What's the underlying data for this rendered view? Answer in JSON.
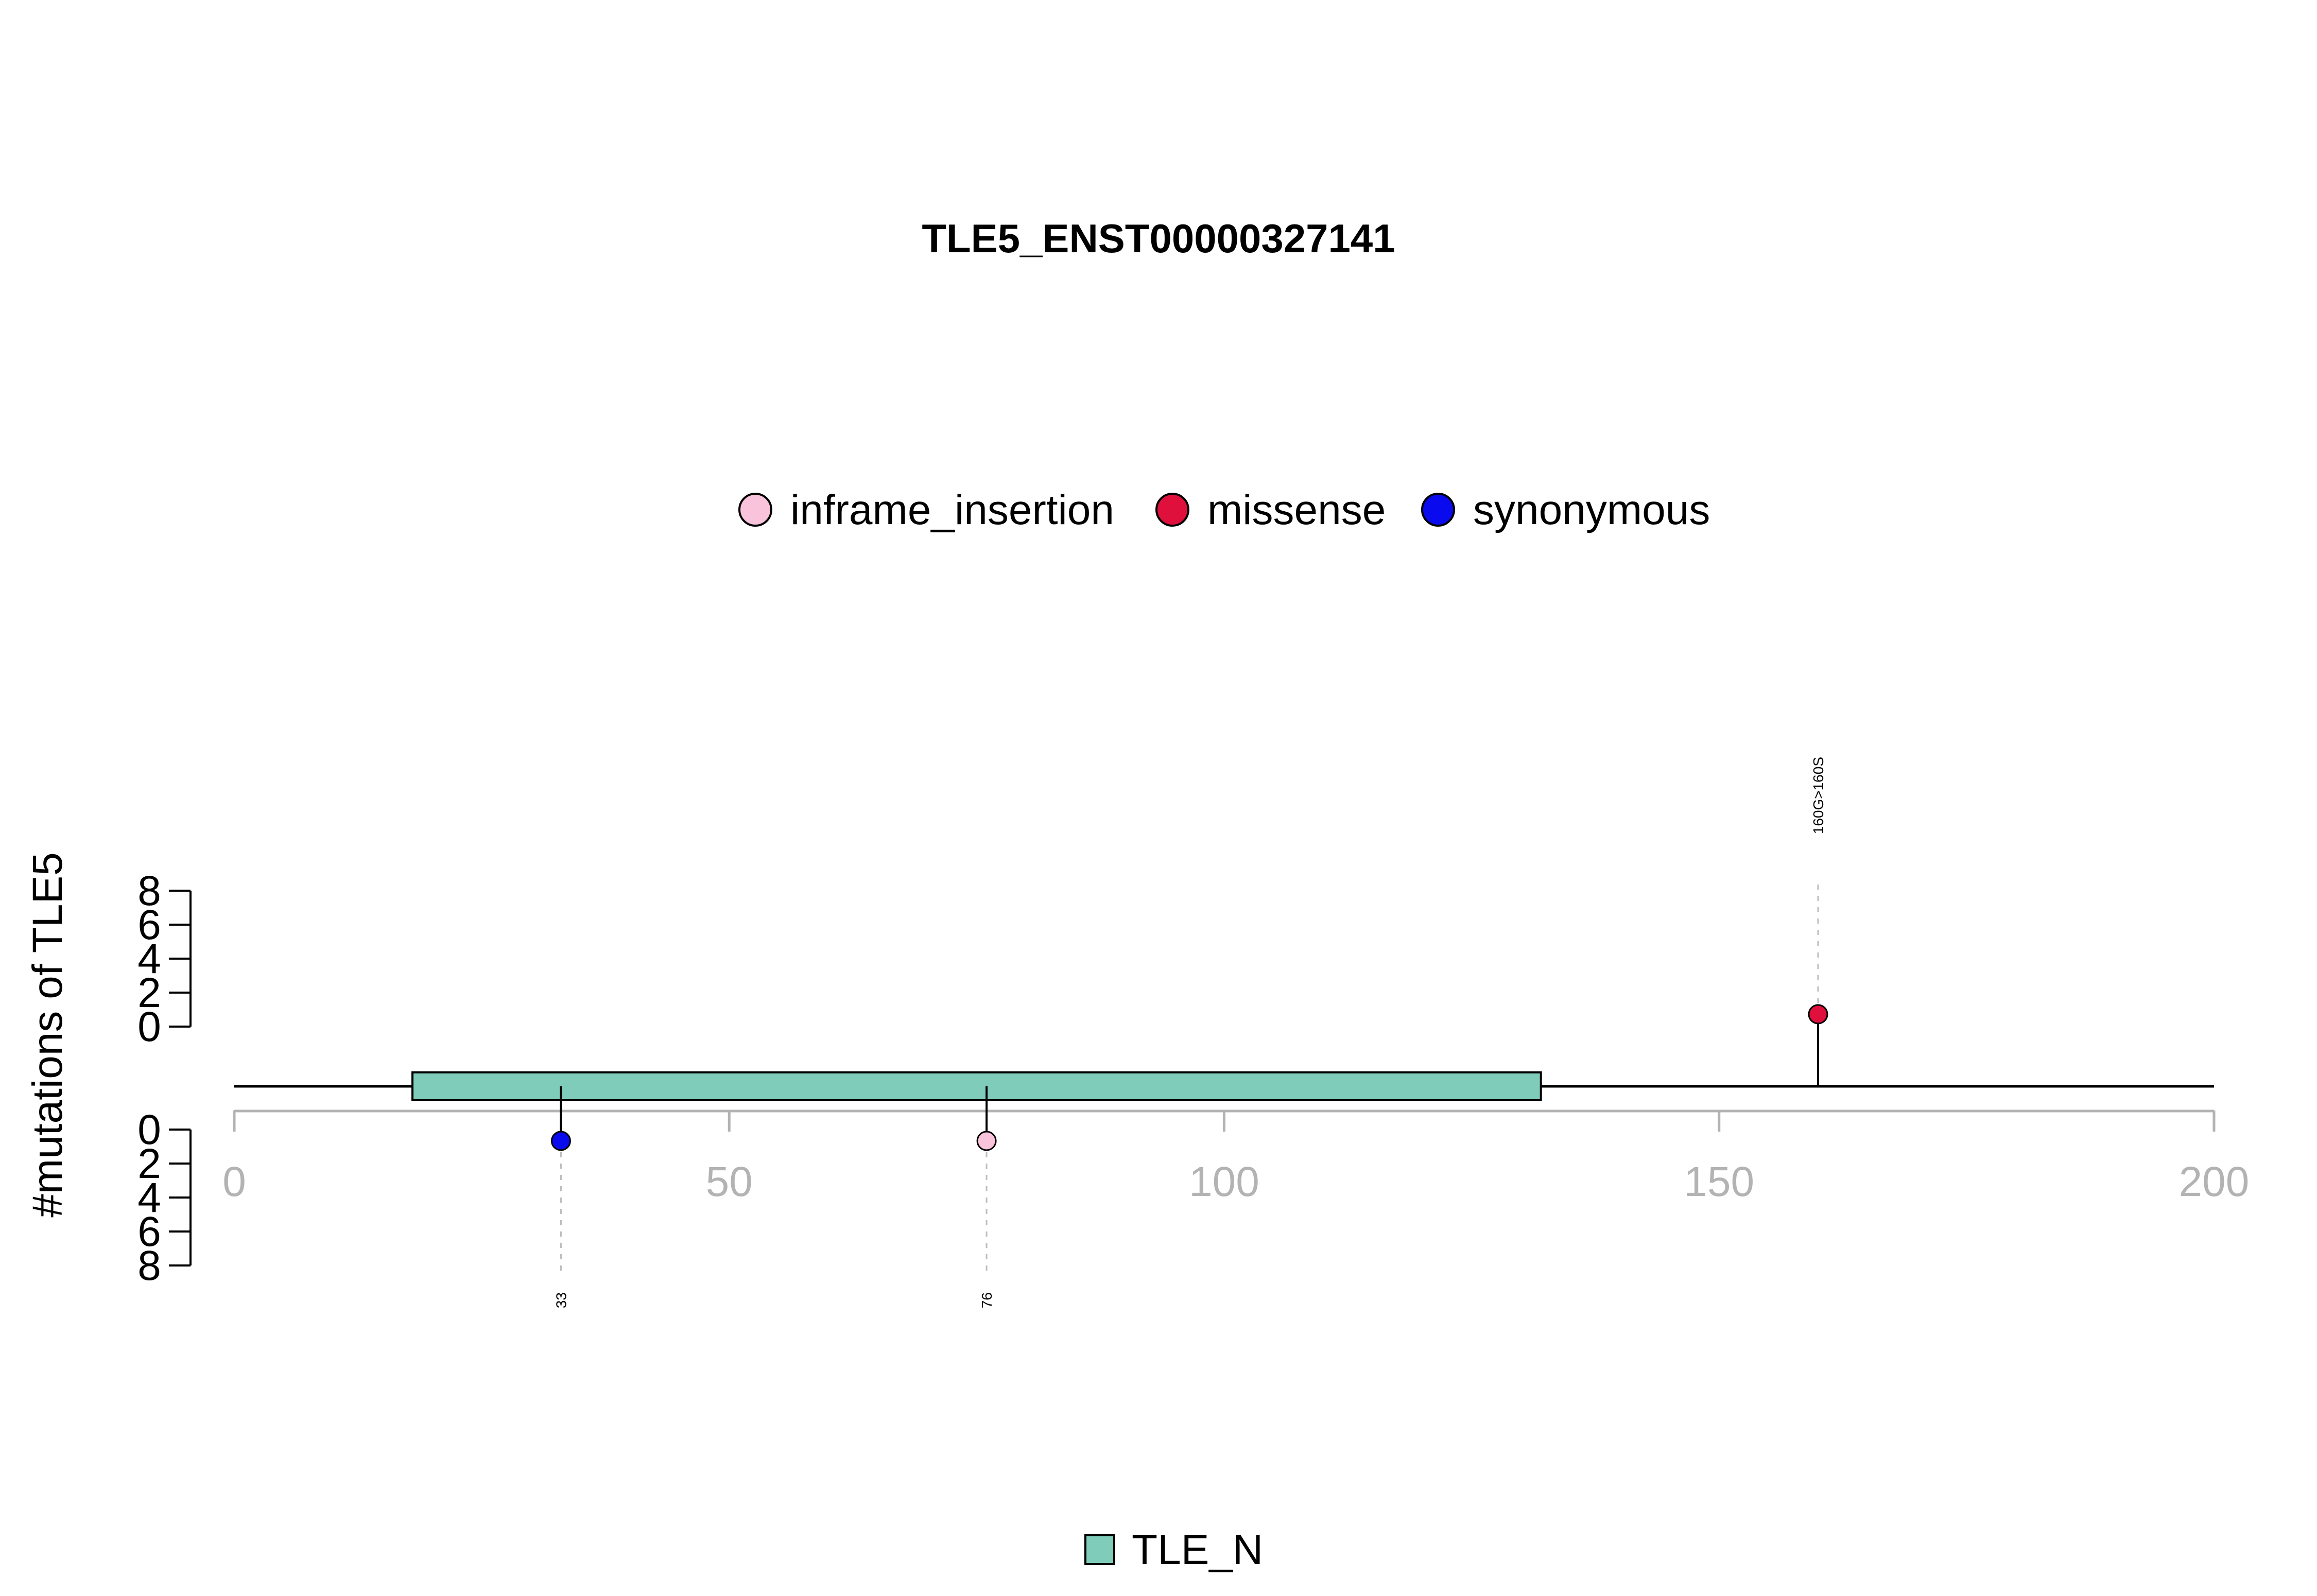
{
  "chart_data": {
    "type": "lollipop",
    "title": "TLE5_ENST00000327141",
    "ylabel": "#mutations of TLE5",
    "xlim": [
      0,
      200
    ],
    "x_ticks": [
      0,
      50,
      100,
      150,
      200
    ],
    "count_ticks": [
      0,
      2,
      4,
      6,
      8
    ],
    "colors": {
      "inframe_insertion": "#f9c3dc",
      "missense": "#e0103c",
      "synonymous": "#0a0aee",
      "domain_fill": "#7fccba"
    },
    "mutation_legend": [
      {
        "label": "inframe_insertion",
        "color": "#f9c3dc"
      },
      {
        "label": "missense",
        "color": "#e0103c"
      },
      {
        "label": "synonymous",
        "color": "#0a0aee"
      }
    ],
    "domains": [
      {
        "name": "TLE_N",
        "start": 18,
        "end": 132,
        "color": "#7fccba"
      }
    ],
    "mutations": [
      {
        "position": 160,
        "count": 1,
        "type": "missense",
        "strand": "top",
        "label": "160G>160S"
      },
      {
        "position": 33,
        "count": 1,
        "type": "synonymous",
        "strand": "bottom",
        "label": "33"
      },
      {
        "position": 76,
        "count": 1,
        "type": "inframe_insertion",
        "strand": "bottom",
        "label": "76"
      }
    ]
  }
}
